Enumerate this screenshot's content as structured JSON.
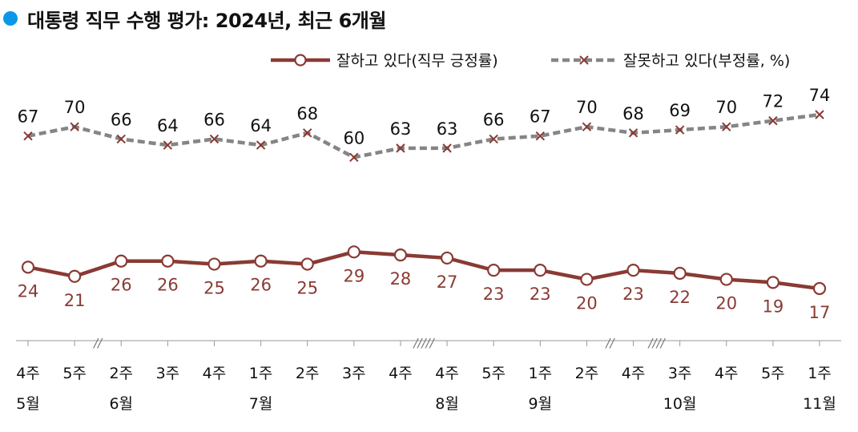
{
  "title": "대통령 직무 수행 평가: 2024년, 최근 6개월",
  "colors": {
    "title_dot": "#0a97e8",
    "positive": "#8a3a34",
    "negative": "#858585",
    "axis": "#999999"
  },
  "chart_data": {
    "type": "line",
    "title": "대통령 직무 수행 평가: 2024년, 최근 6개월",
    "xlabel": "",
    "ylabel": "",
    "grid": false,
    "legend_position": "top-right",
    "categories": [
      "4주",
      "5주",
      "2주",
      "3주",
      "4주",
      "1주",
      "2주",
      "3주",
      "4주",
      "4주",
      "5주",
      "1주",
      "2주",
      "4주",
      "3주",
      "4주",
      "5주",
      "1주"
    ],
    "months": [
      {
        "label": "5월",
        "index": 0
      },
      {
        "label": "6월",
        "index": 2
      },
      {
        "label": "7월",
        "index": 5
      },
      {
        "label": "8월",
        "index": 9
      },
      {
        "label": "9월",
        "index": 11
      },
      {
        "label": "10월",
        "index": 14
      },
      {
        "label": "11월",
        "index": 17
      }
    ],
    "breaks": [
      {
        "after_index": 1,
        "mark": "//"
      },
      {
        "after_index": 8,
        "mark": "/////"
      },
      {
        "after_index": 12,
        "mark": "//"
      },
      {
        "after_index": 13,
        "mark": "////"
      }
    ],
    "series": [
      {
        "name": "잘하고 있다(직무 긍정률)",
        "marker": "circle",
        "line": "solid",
        "values": [
          24,
          21,
          26,
          26,
          25,
          26,
          25,
          29,
          28,
          27,
          23,
          23,
          20,
          23,
          22,
          20,
          19,
          17
        ]
      },
      {
        "name": "잘못하고 있다(부정률, %)",
        "marker": "x",
        "line": "dashed",
        "values": [
          67,
          70,
          66,
          64,
          66,
          64,
          68,
          60,
          63,
          63,
          66,
          67,
          70,
          68,
          69,
          70,
          72,
          74
        ]
      }
    ]
  }
}
